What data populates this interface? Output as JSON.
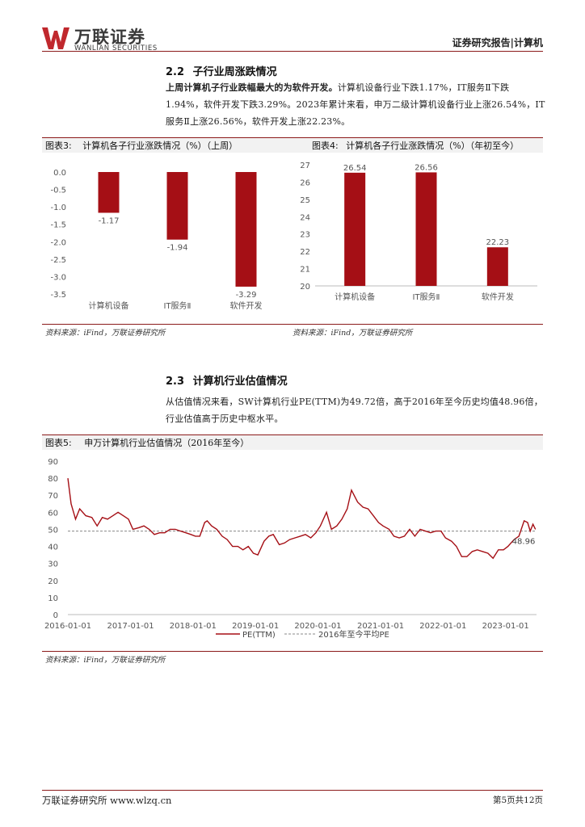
{
  "header": {
    "logo_name": "万联证券",
    "logo_en": "WANLIAN SECURITIES",
    "doc_type": "证券研究报告|计算机"
  },
  "sec22": {
    "number": "2.2",
    "title": "子行业周涨跌情况",
    "bold_lead": "上周计算机子行业跌幅最大的为软件开发。",
    "body": "计算机设备行业下跌1.17%，IT服务Ⅱ下跌1.94%，软件开发下跌3.29%。2023年累计来看，申万二级计算机设备行业上涨26.54%，IT服务Ⅱ上涨26.56%，软件开发上涨22.23%。"
  },
  "fig3": {
    "label": "图表3:",
    "title": "计算机各子行业涨跌情况（%）（上周）",
    "source": "资料来源：iFind，万联证券研究所"
  },
  "fig4": {
    "label": "图表4:",
    "title": "计算机各子行业涨跌情况（%）（年初至今）",
    "source": "资料来源：iFind，万联证券研究所"
  },
  "sec23": {
    "number": "2.3",
    "title": "计算机行业估值情况",
    "body": "从估值情况来看，SW计算机行业PE(TTM)为49.72倍，高于2016年至今历史均值48.96倍，行业估值高于历史中枢水平。"
  },
  "fig5": {
    "label": "图表5:",
    "title": "申万计算机行业估值情况（2016年至今）",
    "source": "资料来源：iFind，万联证券研究所"
  },
  "footer": {
    "left": "万联证券研究所 www.wlzq.cn",
    "right": "第5页共12页"
  },
  "colors": {
    "accent": "#8b1a1a",
    "bar": "#a50f15"
  },
  "chart_data": [
    {
      "type": "bar",
      "categories": [
        "计算机设备",
        "IT服务Ⅱ",
        "软件开发"
      ],
      "values": [
        -1.17,
        -1.94,
        -3.29
      ],
      "value_labels": [
        "-1.17",
        "-1.94",
        "-3.29"
      ],
      "ylim": [
        -3.5,
        0
      ],
      "yticks": [
        "0.0",
        "-0.5",
        "-1.0",
        "-1.5",
        "-2.0",
        "-2.5",
        "-3.0",
        "-3.5"
      ],
      "grid": false
    },
    {
      "type": "bar",
      "categories": [
        "计算机设备",
        "IT服务Ⅱ",
        "软件开发"
      ],
      "values": [
        26.54,
        26.56,
        22.23
      ],
      "value_labels": [
        "26.54",
        "26.56",
        "22.23"
      ],
      "ylim": [
        20,
        27
      ],
      "yticks": [
        "27",
        "26",
        "25",
        "24",
        "23",
        "22",
        "21",
        "20"
      ],
      "grid": false
    },
    {
      "type": "line",
      "xticks": [
        "2016-01-01",
        "2017-01-01",
        "2018-01-01",
        "2019-01-01",
        "2020-01-01",
        "2021-01-01",
        "2022-01-01",
        "2023-01-01"
      ],
      "yticks": [
        "90",
        "80",
        "70",
        "60",
        "50",
        "40",
        "30",
        "20",
        "10",
        "0"
      ],
      "ylim": [
        0,
        90
      ],
      "legend_position": "bottom",
      "series": [
        {
          "name": "PE(TTM)",
          "style": "solid",
          "points": [
            [
              "2016-01-01",
              80
            ],
            [
              "2016-01-20",
              65
            ],
            [
              "2016-02-15",
              56
            ],
            [
              "2016-03-10",
              62
            ],
            [
              "2016-04-15",
              58
            ],
            [
              "2016-05-20",
              57
            ],
            [
              "2016-06-20",
              52
            ],
            [
              "2016-07-20",
              57
            ],
            [
              "2016-08-20",
              56
            ],
            [
              "2016-09-20",
              58
            ],
            [
              "2016-10-20",
              60
            ],
            [
              "2016-11-20",
              58
            ],
            [
              "2016-12-20",
              56
            ],
            [
              "2017-01-15",
              50
            ],
            [
              "2017-02-20",
              51
            ],
            [
              "2017-03-20",
              52
            ],
            [
              "2017-04-20",
              50
            ],
            [
              "2017-05-20",
              47
            ],
            [
              "2017-06-20",
              48
            ],
            [
              "2017-07-20",
              48
            ],
            [
              "2017-08-20",
              50
            ],
            [
              "2017-09-20",
              50
            ],
            [
              "2017-10-20",
              49
            ],
            [
              "2017-11-20",
              48
            ],
            [
              "2017-12-20",
              47
            ],
            [
              "2018-01-15",
              46
            ],
            [
              "2018-02-10",
              46
            ],
            [
              "2018-03-10",
              54
            ],
            [
              "2018-03-25",
              55
            ],
            [
              "2018-04-20",
              52
            ],
            [
              "2018-05-20",
              50
            ],
            [
              "2018-06-20",
              46
            ],
            [
              "2018-07-20",
              44
            ],
            [
              "2018-08-20",
              40
            ],
            [
              "2018-09-20",
              40
            ],
            [
              "2018-10-20",
              38
            ],
            [
              "2018-11-20",
              40
            ],
            [
              "2018-12-20",
              36
            ],
            [
              "2019-01-15",
              35
            ],
            [
              "2019-02-20",
              43
            ],
            [
              "2019-03-20",
              46
            ],
            [
              "2019-04-15",
              47
            ],
            [
              "2019-05-20",
              41
            ],
            [
              "2019-06-20",
              42
            ],
            [
              "2019-07-20",
              44
            ],
            [
              "2019-08-20",
              45
            ],
            [
              "2019-09-20",
              46
            ],
            [
              "2019-10-20",
              47
            ],
            [
              "2019-11-20",
              45
            ],
            [
              "2019-12-20",
              48
            ],
            [
              "2020-01-15",
              52
            ],
            [
              "2020-02-20",
              60
            ],
            [
              "2020-03-20",
              50
            ],
            [
              "2020-04-20",
              52
            ],
            [
              "2020-05-20",
              56
            ],
            [
              "2020-06-20",
              62
            ],
            [
              "2020-07-15",
              73
            ],
            [
              "2020-08-20",
              66
            ],
            [
              "2020-09-20",
              63
            ],
            [
              "2020-10-20",
              62
            ],
            [
              "2020-11-20",
              58
            ],
            [
              "2020-12-20",
              54
            ],
            [
              "2021-01-15",
              52
            ],
            [
              "2021-02-20",
              50
            ],
            [
              "2021-03-20",
              46
            ],
            [
              "2021-04-20",
              45
            ],
            [
              "2021-05-20",
              46
            ],
            [
              "2021-06-20",
              50
            ],
            [
              "2021-07-20",
              46
            ],
            [
              "2021-08-20",
              50
            ],
            [
              "2021-09-20",
              49
            ],
            [
              "2021-10-20",
              48
            ],
            [
              "2021-11-20",
              49
            ],
            [
              "2021-12-20",
              49
            ],
            [
              "2022-01-15",
              45
            ],
            [
              "2022-02-20",
              43
            ],
            [
              "2022-03-20",
              40
            ],
            [
              "2022-04-20",
              34
            ],
            [
              "2022-05-20",
              34
            ],
            [
              "2022-06-20",
              37
            ],
            [
              "2022-07-20",
              38
            ],
            [
              "2022-08-20",
              37
            ],
            [
              "2022-09-20",
              36
            ],
            [
              "2022-10-20",
              33
            ],
            [
              "2022-11-20",
              38
            ],
            [
              "2022-12-20",
              38
            ],
            [
              "2023-01-15",
              40
            ],
            [
              "2023-02-20",
              44
            ],
            [
              "2023-03-20",
              46
            ],
            [
              "2023-04-20",
              55
            ],
            [
              "2023-05-10",
              54
            ],
            [
              "2023-05-25",
              49
            ],
            [
              "2023-06-10",
              53
            ],
            [
              "2023-06-25",
              50
            ]
          ]
        },
        {
          "name": "2016年至今平均PE",
          "style": "dashed",
          "value": 48.96,
          "value_label": "48.96"
        }
      ]
    }
  ]
}
